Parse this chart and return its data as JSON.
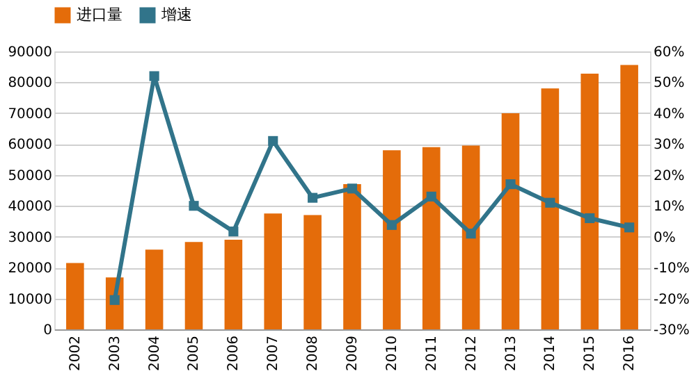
{
  "chart_data": {
    "type": "bar",
    "categories": [
      "2002",
      "2003",
      "2004",
      "2005",
      "2006",
      "2007",
      "2008",
      "2009",
      "2010",
      "2011",
      "2012",
      "2013",
      "2014",
      "2015",
      "2016"
    ],
    "series": [
      {
        "name": "进口量",
        "color": "#e46c0a",
        "values": [
          21500,
          16800,
          25800,
          28300,
          29000,
          37500,
          37000,
          47000,
          58000,
          59000,
          59500,
          70000,
          78000,
          82800,
          85600
        ]
      },
      {
        "name": "增速",
        "type": "line",
        "axis": "y2",
        "color": "#31748a",
        "values": [
          null,
          -20.5,
          52,
          10,
          1.7,
          31,
          12.6,
          15.6,
          3.8,
          13,
          1,
          17,
          11,
          6,
          3
        ]
      }
    ],
    "ylim": [
      0,
      90000
    ],
    "yticks": [
      0,
      10000,
      20000,
      30000,
      40000,
      50000,
      60000,
      70000,
      80000,
      90000
    ],
    "y2lim": [
      -30,
      60
    ],
    "y2ticks": [
      {
        "value": -30,
        "label": "-30%"
      },
      {
        "value": -20,
        "label": "-20%"
      },
      {
        "value": -10,
        "label": "-10%"
      },
      {
        "value": 0,
        "label": "0%"
      },
      {
        "value": 10,
        "label": "10%"
      },
      {
        "value": 20,
        "label": "20%"
      },
      {
        "value": 30,
        "label": "30%"
      },
      {
        "value": 40,
        "label": "40%"
      },
      {
        "value": 50,
        "label": "50%"
      },
      {
        "value": 60,
        "label": "60%"
      }
    ],
    "grid": "y",
    "legend": "top",
    "marker": "square",
    "line_style": "solid"
  }
}
